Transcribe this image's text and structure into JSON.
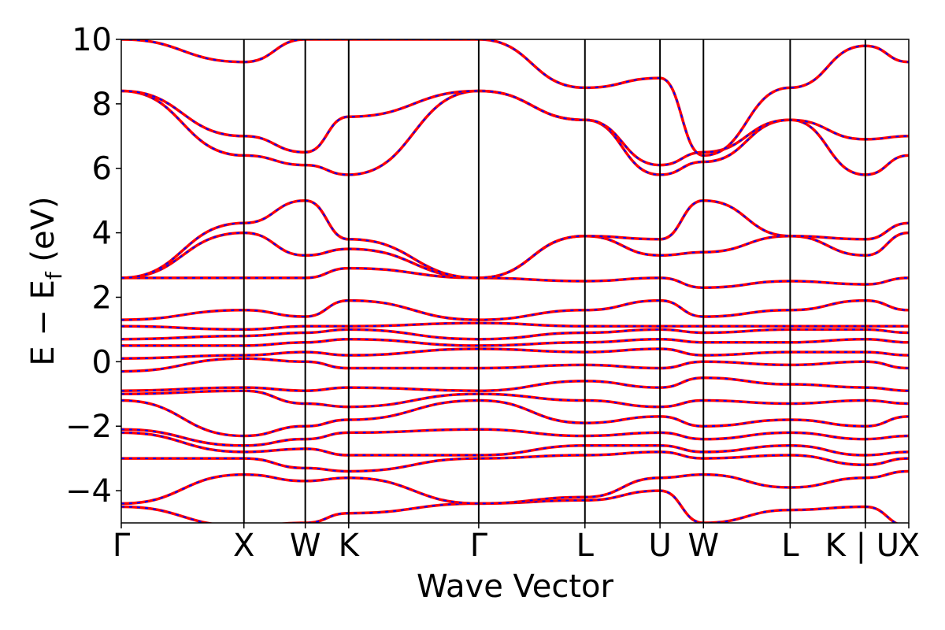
{
  "chart_data": {
    "type": "line",
    "title": "",
    "xlabel": "Wave Vector",
    "ylabel_main": "E − E",
    "ylabel_sub": "f",
    "ylabel_unit": " (eV)",
    "ylim": [
      -5,
      10
    ],
    "yticks": [
      -4,
      -2,
      0,
      2,
      4,
      6,
      8,
      10
    ],
    "ytick_labels": [
      "−4",
      "−2",
      "0",
      "2",
      "4",
      "6",
      "8",
      "10"
    ],
    "kpoints": [
      {
        "label": "Γ",
        "x": 0.0
      },
      {
        "label": "X",
        "x": 1.0
      },
      {
        "label": "W",
        "x": 1.5
      },
      {
        "label": "K",
        "x": 1.854
      },
      {
        "label": "Γ",
        "x": 2.914
      },
      {
        "label": "L",
        "x": 3.78
      },
      {
        "label": "U",
        "x": 4.392
      },
      {
        "label": "W",
        "x": 4.746
      },
      {
        "label": "L",
        "x": 5.453
      },
      {
        "label": "K | U",
        "x": 6.066
      },
      {
        "label": "X",
        "x": 6.42
      }
    ],
    "xlim": [
      0,
      6.42
    ],
    "grid": false,
    "series_colors": {
      "spin_up": "#ff0000",
      "spin_down": "#0000ff"
    },
    "bands": [
      [
        [
          0,
          -4.5
        ],
        [
          1,
          -5.1
        ],
        [
          1.5,
          -5.0
        ],
        [
          1.854,
          -4.7
        ],
        [
          2.914,
          -4.4
        ],
        [
          3.78,
          -4.3
        ],
        [
          4.392,
          -4.0
        ],
        [
          4.746,
          -5.0
        ],
        [
          5.453,
          -4.6
        ],
        [
          6.066,
          -4.5
        ],
        [
          6.42,
          -5.1
        ]
      ],
      [
        [
          0,
          -4.4
        ],
        [
          1,
          -3.5
        ],
        [
          1.5,
          -3.7
        ],
        [
          1.854,
          -3.6
        ],
        [
          2.914,
          -4.4
        ],
        [
          3.78,
          -4.2
        ],
        [
          4.392,
          -3.6
        ],
        [
          4.746,
          -3.5
        ],
        [
          5.453,
          -3.9
        ],
        [
          6.066,
          -3.6
        ],
        [
          6.42,
          -3.4
        ]
      ],
      [
        [
          0,
          -3.0
        ],
        [
          1,
          -3.0
        ],
        [
          1.5,
          -3.3
        ],
        [
          1.854,
          -3.4
        ],
        [
          2.914,
          -3.0
        ],
        [
          3.78,
          -2.9
        ],
        [
          4.392,
          -2.8
        ],
        [
          4.746,
          -3.0
        ],
        [
          5.453,
          -2.9
        ],
        [
          6.066,
          -3.2
        ],
        [
          6.42,
          -3.0
        ]
      ],
      [
        [
          0,
          -2.2
        ],
        [
          1,
          -2.8
        ],
        [
          1.5,
          -2.7
        ],
        [
          1.854,
          -2.9
        ],
        [
          2.914,
          -2.9
        ],
        [
          3.78,
          -2.6
        ],
        [
          4.392,
          -2.6
        ],
        [
          4.746,
          -2.8
        ],
        [
          5.453,
          -2.6
        ],
        [
          6.066,
          -2.9
        ],
        [
          6.42,
          -2.8
        ]
      ],
      [
        [
          0,
          -2.1
        ],
        [
          1,
          -2.6
        ],
        [
          1.5,
          -2.4
        ],
        [
          1.854,
          -2.2
        ],
        [
          2.914,
          -2.1
        ],
        [
          3.78,
          -2.3
        ],
        [
          4.392,
          -2.2
        ],
        [
          4.746,
          -2.4
        ],
        [
          5.453,
          -2.2
        ],
        [
          6.066,
          -2.4
        ],
        [
          6.42,
          -2.3
        ]
      ],
      [
        [
          0,
          -1.2
        ],
        [
          1,
          -2.3
        ],
        [
          1.5,
          -2.0
        ],
        [
          1.854,
          -1.8
        ],
        [
          2.914,
          -1.2
        ],
        [
          3.78,
          -1.9
        ],
        [
          4.392,
          -1.7
        ],
        [
          4.746,
          -2.0
        ],
        [
          5.453,
          -1.8
        ],
        [
          6.066,
          -2.0
        ],
        [
          6.42,
          -1.7
        ]
      ],
      [
        [
          0,
          -1.0
        ],
        [
          1,
          -0.9
        ],
        [
          1.5,
          -1.3
        ],
        [
          1.854,
          -1.4
        ],
        [
          2.914,
          -1.0
        ],
        [
          3.78,
          -1.2
        ],
        [
          4.392,
          -1.4
        ],
        [
          4.746,
          -1.2
        ],
        [
          5.453,
          -1.3
        ],
        [
          6.066,
          -1.2
        ],
        [
          6.42,
          -1.3
        ]
      ],
      [
        [
          0,
          -0.9
        ],
        [
          1,
          -0.8
        ],
        [
          1.5,
          -0.9
        ],
        [
          1.854,
          -0.8
        ],
        [
          2.914,
          -0.9
        ],
        [
          3.78,
          -0.6
        ],
        [
          4.392,
          -0.8
        ],
        [
          4.746,
          -0.5
        ],
        [
          5.453,
          -0.7
        ],
        [
          6.066,
          -0.8
        ],
        [
          6.42,
          -0.9
        ]
      ],
      [
        [
          0,
          -0.3
        ],
        [
          1,
          0.1
        ],
        [
          1.5,
          0.0
        ],
        [
          1.854,
          -0.2
        ],
        [
          2.914,
          -0.2
        ],
        [
          3.78,
          -0.1
        ],
        [
          4.392,
          -0.2
        ],
        [
          4.746,
          0.0
        ],
        [
          5.453,
          -0.1
        ],
        [
          6.066,
          0.0
        ],
        [
          6.42,
          -0.2
        ]
      ],
      [
        [
          0,
          0.1
        ],
        [
          1,
          0.2
        ],
        [
          1.5,
          0.3
        ],
        [
          1.854,
          0.2
        ],
        [
          2.914,
          0.4
        ],
        [
          3.78,
          0.3
        ],
        [
          4.392,
          0.4
        ],
        [
          4.746,
          0.2
        ],
        [
          5.453,
          0.3
        ],
        [
          6.066,
          0.3
        ],
        [
          6.42,
          0.2
        ]
      ],
      [
        [
          0,
          0.5
        ],
        [
          1,
          0.5
        ],
        [
          1.5,
          0.6
        ],
        [
          1.854,
          0.7
        ],
        [
          2.914,
          0.5
        ],
        [
          3.78,
          0.6
        ],
        [
          4.392,
          0.7
        ],
        [
          4.746,
          0.6
        ],
        [
          5.453,
          0.6
        ],
        [
          6.066,
          0.7
        ],
        [
          6.42,
          0.6
        ]
      ],
      [
        [
          0,
          0.7
        ],
        [
          1,
          0.8
        ],
        [
          1.5,
          0.9
        ],
        [
          1.854,
          1.0
        ],
        [
          2.914,
          0.7
        ],
        [
          3.78,
          0.9
        ],
        [
          4.392,
          1.0
        ],
        [
          4.746,
          0.9
        ],
        [
          5.453,
          1.0
        ],
        [
          6.066,
          1.0
        ],
        [
          6.42,
          0.9
        ]
      ],
      [
        [
          0,
          1.1
        ],
        [
          1,
          1.0
        ],
        [
          1.5,
          1.1
        ],
        [
          1.854,
          1.1
        ],
        [
          2.914,
          1.2
        ],
        [
          3.78,
          1.1
        ],
        [
          4.392,
          1.1
        ],
        [
          4.746,
          1.1
        ],
        [
          5.453,
          1.1
        ],
        [
          6.066,
          1.1
        ],
        [
          6.42,
          1.1
        ]
      ],
      [
        [
          0,
          1.3
        ],
        [
          1,
          1.6
        ],
        [
          1.5,
          1.4
        ],
        [
          1.854,
          1.9
        ],
        [
          2.914,
          1.3
        ],
        [
          3.78,
          1.6
        ],
        [
          4.392,
          1.9
        ],
        [
          4.746,
          1.4
        ],
        [
          5.453,
          1.6
        ],
        [
          6.066,
          1.9
        ],
        [
          6.42,
          1.6
        ]
      ],
      [
        [
          0,
          2.6
        ],
        [
          1,
          2.6
        ],
        [
          1.5,
          2.6
        ],
        [
          1.854,
          2.9
        ],
        [
          2.914,
          2.6
        ],
        [
          3.78,
          2.5
        ],
        [
          4.392,
          2.6
        ],
        [
          4.746,
          2.3
        ],
        [
          5.453,
          2.5
        ],
        [
          6.066,
          2.4
        ],
        [
          6.42,
          2.6
        ]
      ],
      [
        [
          0,
          2.6
        ],
        [
          1,
          4.0
        ],
        [
          1.5,
          3.3
        ],
        [
          1.854,
          3.5
        ],
        [
          2.914,
          2.6
        ],
        [
          3.78,
          3.9
        ],
        [
          4.392,
          3.3
        ],
        [
          4.746,
          3.4
        ],
        [
          5.453,
          3.9
        ],
        [
          6.066,
          3.3
        ],
        [
          6.42,
          4.0
        ]
      ],
      [
        [
          0,
          2.6
        ],
        [
          1,
          4.3
        ],
        [
          1.5,
          5.0
        ],
        [
          1.854,
          3.8
        ],
        [
          2.914,
          2.6
        ],
        [
          3.78,
          3.9
        ],
        [
          4.392,
          3.8
        ],
        [
          4.746,
          5.0
        ],
        [
          5.453,
          3.9
        ],
        [
          6.066,
          3.8
        ],
        [
          6.42,
          4.3
        ]
      ],
      [
        [
          0,
          8.4
        ],
        [
          1,
          6.4
        ],
        [
          1.5,
          6.1
        ],
        [
          1.854,
          5.8
        ],
        [
          2.914,
          8.4
        ],
        [
          3.78,
          7.5
        ],
        [
          4.392,
          5.8
        ],
        [
          4.746,
          6.2
        ],
        [
          5.453,
          7.5
        ],
        [
          6.066,
          5.8
        ],
        [
          6.42,
          6.4
        ]
      ],
      [
        [
          0,
          8.4
        ],
        [
          1,
          7.0
        ],
        [
          1.5,
          6.5
        ],
        [
          1.854,
          7.6
        ],
        [
          2.914,
          8.4
        ],
        [
          3.78,
          7.5
        ],
        [
          4.392,
          6.1
        ],
        [
          4.746,
          6.5
        ],
        [
          5.453,
          7.5
        ],
        [
          6.066,
          6.9
        ],
        [
          6.42,
          7.0
        ]
      ],
      [
        [
          0,
          10.0
        ],
        [
          1,
          9.3
        ],
        [
          1.5,
          10.0
        ],
        [
          1.854,
          10.0
        ],
        [
          2.914,
          10.0
        ],
        [
          3.78,
          8.5
        ],
        [
          4.392,
          8.8
        ],
        [
          4.746,
          6.4
        ],
        [
          5.453,
          8.5
        ],
        [
          6.066,
          9.8
        ],
        [
          6.42,
          9.3
        ]
      ]
    ]
  }
}
